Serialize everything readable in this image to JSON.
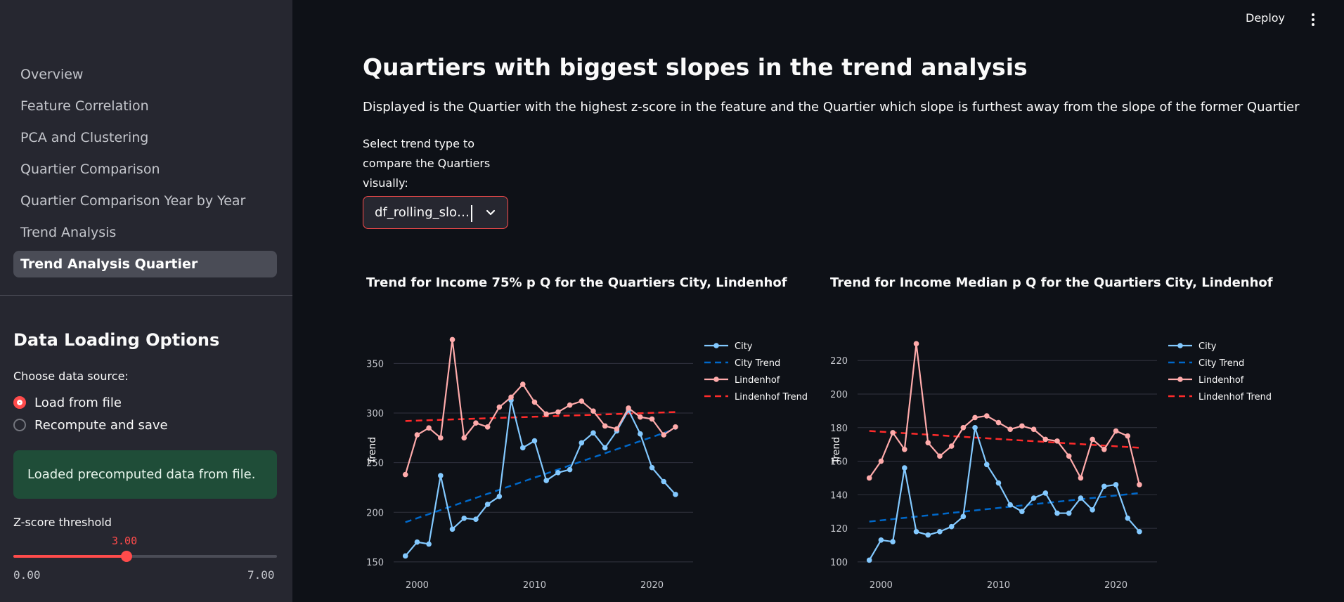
{
  "sidebar": {
    "nav": [
      "Overview",
      "Feature Correlation",
      "PCA and Clustering",
      "Quartier Comparison",
      "Quartier Comparison Year by Year",
      "Trend Analysis",
      "Trend Analysis Quartier"
    ],
    "active_nav": "Trend Analysis Quartier",
    "heading": "Data Loading Options",
    "source_label": "Choose data source:",
    "radio_options": [
      "Load from file",
      "Recompute and save"
    ],
    "radio_selected": "Load from file",
    "success_message": "Loaded precomputed data from file.",
    "zscore": {
      "label": "Z-score threshold",
      "value": "3.00",
      "min": "0.00",
      "max": "7.00",
      "fraction": 0.4286
    }
  },
  "header": {
    "deploy_label": "Deploy",
    "menu_icon": "kebab-menu-icon"
  },
  "main": {
    "title": "Quartiers with biggest slopes in the trend analysis",
    "description": "Displayed is the Quartier with the highest z-score in the feature and the Quartier which slope is furthest away from the slope of the former Quartier",
    "select_label": "Select trend type to compare the Quartiers visually:",
    "select_value": "df_rolling_slo…",
    "select_icon": "chevron-down-icon"
  },
  "colors": {
    "accent": "#ff4b4b",
    "city": "#83c9ff",
    "city_trend": "#0068c9",
    "lindenhof": "#ffabab",
    "lindenhof_trend": "#ff2b2b"
  },
  "chart_data": [
    {
      "type": "line",
      "title": "Trend for Income 75% p Q for the Quartiers City, Lindenhof",
      "ylabel": "Trend",
      "xlim": [
        1998,
        2023.5
      ],
      "ylim": [
        145,
        380
      ],
      "xticks": [
        2000,
        2010,
        2020
      ],
      "yticks": [
        150,
        200,
        250,
        300,
        350
      ],
      "grid": true,
      "legend_position": "right",
      "x": [
        1999,
        2000,
        2001,
        2002,
        2003,
        2004,
        2005,
        2006,
        2007,
        2008,
        2009,
        2010,
        2011,
        2012,
        2013,
        2014,
        2015,
        2016,
        2017,
        2018,
        2019,
        2020,
        2021,
        2022
      ],
      "series": [
        {
          "name": "City",
          "style": "line-markers",
          "values": [
            156,
            170,
            168,
            237,
            183,
            194,
            193,
            208,
            216,
            313,
            265,
            272,
            232,
            240,
            243,
            270,
            280,
            265,
            282,
            303,
            279,
            245,
            231,
            218
          ]
        },
        {
          "name": "City Trend",
          "style": "dash",
          "x": [
            1999,
            2022
          ],
          "values": [
            190,
            284
          ]
        },
        {
          "name": "Lindenhof",
          "style": "line-markers",
          "values": [
            238,
            278,
            285,
            275,
            374,
            275,
            290,
            286,
            306,
            316,
            329,
            311,
            299,
            301,
            308,
            312,
            302,
            287,
            284,
            305,
            296,
            294,
            278,
            286
          ]
        },
        {
          "name": "Lindenhof Trend",
          "style": "dash",
          "x": [
            1999,
            2022
          ],
          "values": [
            292,
            301
          ]
        }
      ]
    },
    {
      "type": "line",
      "title": "Trend for Income Median p Q for the Quartiers City, Lindenhof",
      "ylabel": "Trend",
      "xlim": [
        1998,
        2023.5
      ],
      "ylim": [
        97,
        236
      ],
      "xticks": [
        2000,
        2010,
        2020
      ],
      "yticks": [
        100,
        120,
        140,
        160,
        180,
        200,
        220
      ],
      "grid": true,
      "legend_position": "right",
      "x": [
        1999,
        2000,
        2001,
        2002,
        2003,
        2004,
        2005,
        2006,
        2007,
        2008,
        2009,
        2010,
        2011,
        2012,
        2013,
        2014,
        2015,
        2016,
        2017,
        2018,
        2019,
        2020,
        2021,
        2022
      ],
      "series": [
        {
          "name": "City",
          "style": "line-markers",
          "values": [
            101,
            113,
            112,
            156,
            118,
            116,
            118,
            121,
            127,
            180,
            158,
            147,
            134,
            130,
            138,
            141,
            129,
            129,
            138,
            131,
            145,
            146,
            126,
            118
          ]
        },
        {
          "name": "City Trend",
          "style": "dash",
          "x": [
            1999,
            2022
          ],
          "values": [
            124,
            141
          ]
        },
        {
          "name": "Lindenhof",
          "style": "line-markers",
          "values": [
            150,
            160,
            177,
            167,
            230,
            171,
            163,
            169,
            180,
            186,
            187,
            183,
            179,
            181,
            179,
            173,
            172,
            163,
            150,
            173,
            167,
            178,
            175,
            146
          ]
        },
        {
          "name": "Lindenhof Trend",
          "style": "dash",
          "x": [
            1999,
            2022
          ],
          "values": [
            178,
            168
          ]
        }
      ]
    }
  ]
}
